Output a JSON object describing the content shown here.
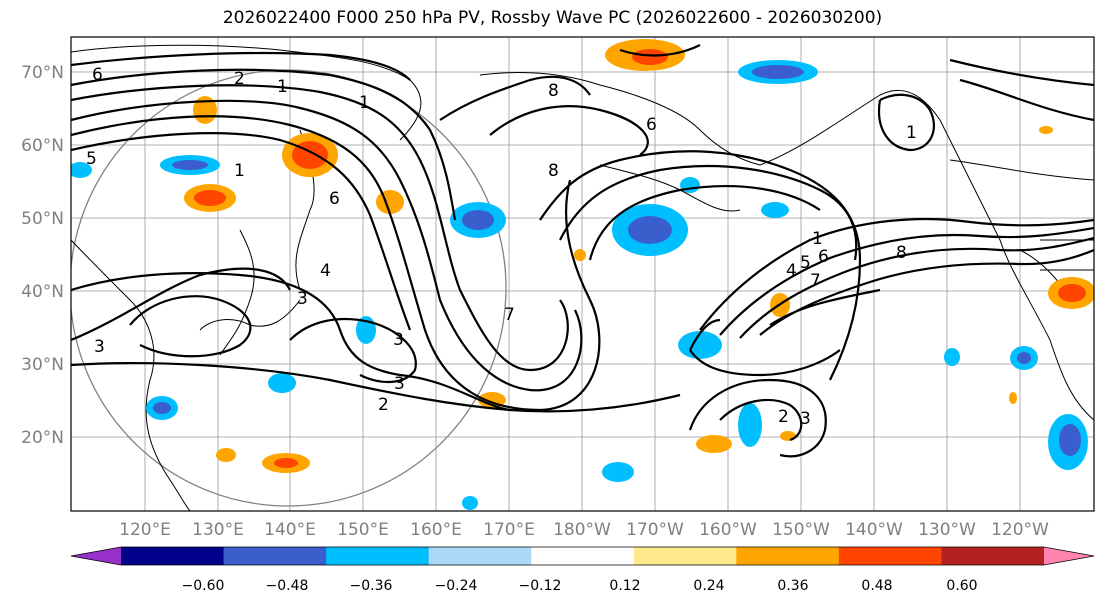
{
  "title": "2026022400 F000 250 hPa PV, Rossby Wave PC (2026022600 - 2026030200)",
  "lat_labels": [
    "70°N",
    "60°N",
    "50°N",
    "40°N",
    "30°N",
    "20°N"
  ],
  "lon_labels": [
    "120°E",
    "130°E",
    "140°E",
    "150°E",
    "160°E",
    "170°E",
    "180°W",
    "170°W",
    "160°W",
    "150°W",
    "140°W",
    "130°W",
    "120°W"
  ],
  "colorbar": {
    "ticks": [
      "−0.60",
      "−0.48",
      "−0.36",
      "−0.24",
      "−0.12",
      "0.12",
      "0.24",
      "0.36",
      "0.48",
      "0.60"
    ],
    "colors": [
      "#9932cc",
      "#00008b",
      "#3a5fcd",
      "#00bfff",
      "#add8f8",
      "#ffffff",
      "#ffe98a",
      "#ffa500",
      "#ff4500",
      "#b22222",
      "#ff85b0"
    ]
  },
  "contour_labels": [
    "6",
    "2",
    "1",
    "5",
    "1",
    "6",
    "1",
    "3",
    "4",
    "3",
    "3",
    "3",
    "2",
    "8",
    "8",
    "1",
    "4",
    "5",
    "6",
    "7",
    "8",
    "1",
    "2",
    "3",
    "7",
    "6"
  ]
}
